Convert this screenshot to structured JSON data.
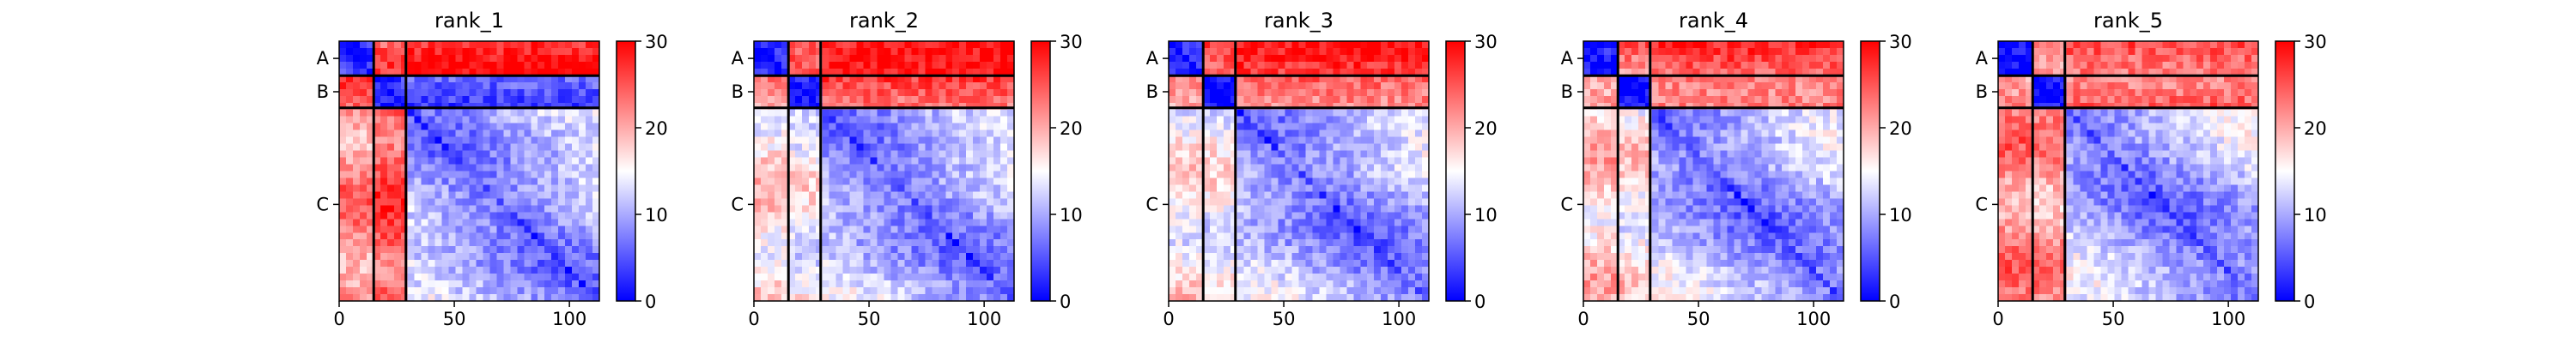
{
  "figure": {
    "panel_titles": [
      "rank_1",
      "rank_2",
      "rank_3",
      "rank_4",
      "rank_5"
    ]
  },
  "chart_data": [
    {
      "type": "heatmap",
      "title": "rank_1",
      "chains": [
        {
          "label": "A",
          "start": 0,
          "end": 15
        },
        {
          "label": "B",
          "start": 15,
          "end": 29
        },
        {
          "label": "C",
          "start": 29,
          "end": 113
        }
      ],
      "xlim": [
        0,
        113
      ],
      "x_ticks": [
        0,
        50,
        100
      ],
      "y_tick_labels": [
        "A",
        "B",
        "C"
      ],
      "colorbar": {
        "range": [
          0,
          30
        ],
        "ticks": [
          0,
          10,
          20,
          30
        ],
        "colormap": "bwr",
        "low_color": "#0000ff",
        "mid_color": "#ffffff",
        "high_color": "#ff0000"
      },
      "block_mean_error": [
        [
          1,
          24,
          27
        ],
        [
          24,
          1,
          3
        ],
        [
          22,
          25,
          6
        ]
      ]
    },
    {
      "type": "heatmap",
      "title": "rank_2",
      "chains": [
        {
          "label": "A",
          "start": 0,
          "end": 15
        },
        {
          "label": "B",
          "start": 15,
          "end": 29
        },
        {
          "label": "C",
          "start": 29,
          "end": 113
        }
      ],
      "xlim": [
        0,
        113
      ],
      "x_ticks": [
        0,
        50,
        100
      ],
      "y_tick_labels": [
        "A",
        "B",
        "C"
      ],
      "colorbar": {
        "range": [
          0,
          30
        ],
        "ticks": [
          0,
          10,
          20,
          30
        ],
        "colormap": "bwr",
        "low_color": "#0000ff",
        "mid_color": "#ffffff",
        "high_color": "#ff0000"
      },
      "block_mean_error": [
        [
          1,
          22,
          26
        ],
        [
          22,
          1,
          25
        ],
        [
          17,
          15,
          6
        ]
      ]
    },
    {
      "type": "heatmap",
      "title": "rank_3",
      "chains": [
        {
          "label": "A",
          "start": 0,
          "end": 15
        },
        {
          "label": "B",
          "start": 15,
          "end": 29
        },
        {
          "label": "C",
          "start": 29,
          "end": 113
        }
      ],
      "xlim": [
        0,
        113
      ],
      "x_ticks": [
        0,
        50,
        100
      ],
      "y_tick_labels": [
        "A",
        "B",
        "C"
      ],
      "colorbar": {
        "range": [
          0,
          30
        ],
        "ticks": [
          0,
          10,
          20,
          30
        ],
        "colormap": "bwr",
        "low_color": "#0000ff",
        "mid_color": "#ffffff",
        "high_color": "#ff0000"
      },
      "block_mean_error": [
        [
          1,
          23,
          26
        ],
        [
          23,
          1,
          25
        ],
        [
          16,
          15,
          6
        ]
      ]
    },
    {
      "type": "heatmap",
      "title": "rank_4",
      "chains": [
        {
          "label": "A",
          "start": 0,
          "end": 15
        },
        {
          "label": "B",
          "start": 15,
          "end": 29
        },
        {
          "label": "C",
          "start": 29,
          "end": 113
        }
      ],
      "xlim": [
        0,
        113
      ],
      "x_ticks": [
        0,
        50,
        100
      ],
      "y_tick_labels": [
        "A",
        "B",
        "C"
      ],
      "colorbar": {
        "range": [
          0,
          30
        ],
        "ticks": [
          0,
          10,
          20,
          30
        ],
        "colormap": "bwr",
        "low_color": "#0000ff",
        "mid_color": "#ffffff",
        "high_color": "#ff0000"
      },
      "block_mean_error": [
        [
          1,
          23,
          26
        ],
        [
          23,
          1,
          25
        ],
        [
          18,
          16,
          6
        ]
      ]
    },
    {
      "type": "heatmap",
      "title": "rank_5",
      "chains": [
        {
          "label": "A",
          "start": 0,
          "end": 15
        },
        {
          "label": "B",
          "start": 15,
          "end": 29
        },
        {
          "label": "C",
          "start": 29,
          "end": 113
        }
      ],
      "xlim": [
        0,
        113
      ],
      "x_ticks": [
        0,
        50,
        100
      ],
      "y_tick_labels": [
        "A",
        "B",
        "C"
      ],
      "colorbar": {
        "range": [
          0,
          30
        ],
        "ticks": [
          0,
          10,
          20,
          30
        ],
        "colormap": "bwr",
        "low_color": "#0000ff",
        "mid_color": "#ffffff",
        "high_color": "#ff0000"
      },
      "block_mean_error": [
        [
          1,
          23,
          26
        ],
        [
          23,
          1,
          25
        ],
        [
          22,
          21,
          6
        ]
      ]
    }
  ]
}
